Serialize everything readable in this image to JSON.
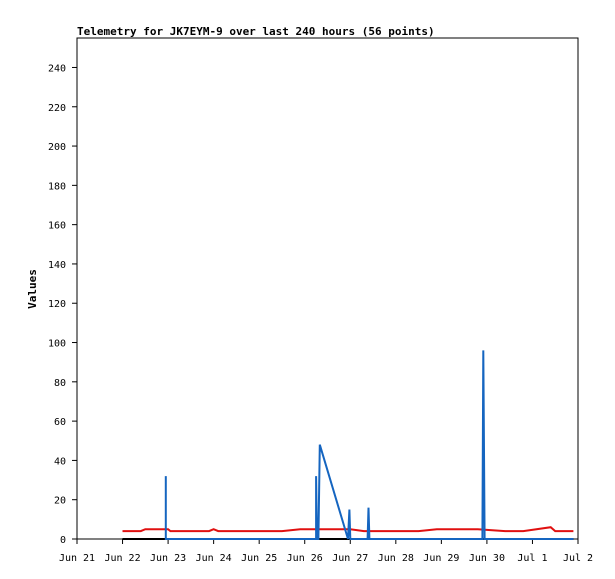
{
  "chart_data": {
    "type": "line",
    "title": "Telemetry for JK7EYM-9 over last 240 hours (56 points)",
    "xlabel": "",
    "ylabel": "Values",
    "ylim": [
      0,
      255
    ],
    "y_ticks": [
      0,
      20,
      40,
      60,
      80,
      100,
      120,
      140,
      160,
      180,
      200,
      220,
      240
    ],
    "x_ticks": [
      "Jun 21",
      "Jun 22",
      "Jun 23",
      "Jun 24",
      "Jun 25",
      "Jun 26",
      "Jun 27",
      "Jun 28",
      "Jun 29",
      "Jun 30",
      "Jul 1",
      "Jul 2"
    ],
    "grid": false,
    "colors": {
      "red": "#e01010",
      "blue": "#1565c0",
      "black": "#000000"
    },
    "series": [
      {
        "color": "red",
        "points": [
          [
            22.0,
            4
          ],
          [
            22.4,
            4
          ],
          [
            22.5,
            5
          ],
          [
            23.0,
            5
          ],
          [
            23.05,
            4
          ],
          [
            23.9,
            4
          ],
          [
            24.0,
            5
          ],
          [
            24.1,
            4
          ],
          [
            25.5,
            4
          ],
          [
            25.9,
            5
          ],
          [
            26.3,
            5
          ],
          [
            26.5,
            5
          ],
          [
            27.0,
            5
          ],
          [
            27.3,
            4
          ],
          [
            28.5,
            4
          ],
          [
            28.9,
            5
          ],
          [
            29.8,
            5
          ],
          [
            30.4,
            4
          ],
          [
            30.8,
            4
          ],
          [
            31.4,
            6
          ],
          [
            31.5,
            4
          ],
          [
            31.9,
            4
          ]
        ]
      },
      {
        "color": "blue",
        "points": [
          [
            22.95,
            0
          ],
          [
            22.95,
            32
          ],
          [
            22.95,
            0
          ],
          [
            23.0,
            0
          ],
          [
            26.25,
            0
          ],
          [
            26.25,
            32
          ],
          [
            26.27,
            0
          ],
          [
            26.3,
            0
          ],
          [
            26.33,
            48
          ],
          [
            26.95,
            0
          ],
          [
            26.98,
            15
          ],
          [
            27.0,
            0
          ],
          [
            27.38,
            0
          ],
          [
            27.4,
            16
          ],
          [
            27.42,
            0
          ],
          [
            29.9,
            0
          ],
          [
            29.92,
            96
          ],
          [
            29.95,
            0
          ],
          [
            31.9,
            0
          ]
        ]
      },
      {
        "color": "black",
        "points": [
          [
            22.0,
            0
          ],
          [
            31.9,
            0
          ]
        ]
      }
    ]
  }
}
